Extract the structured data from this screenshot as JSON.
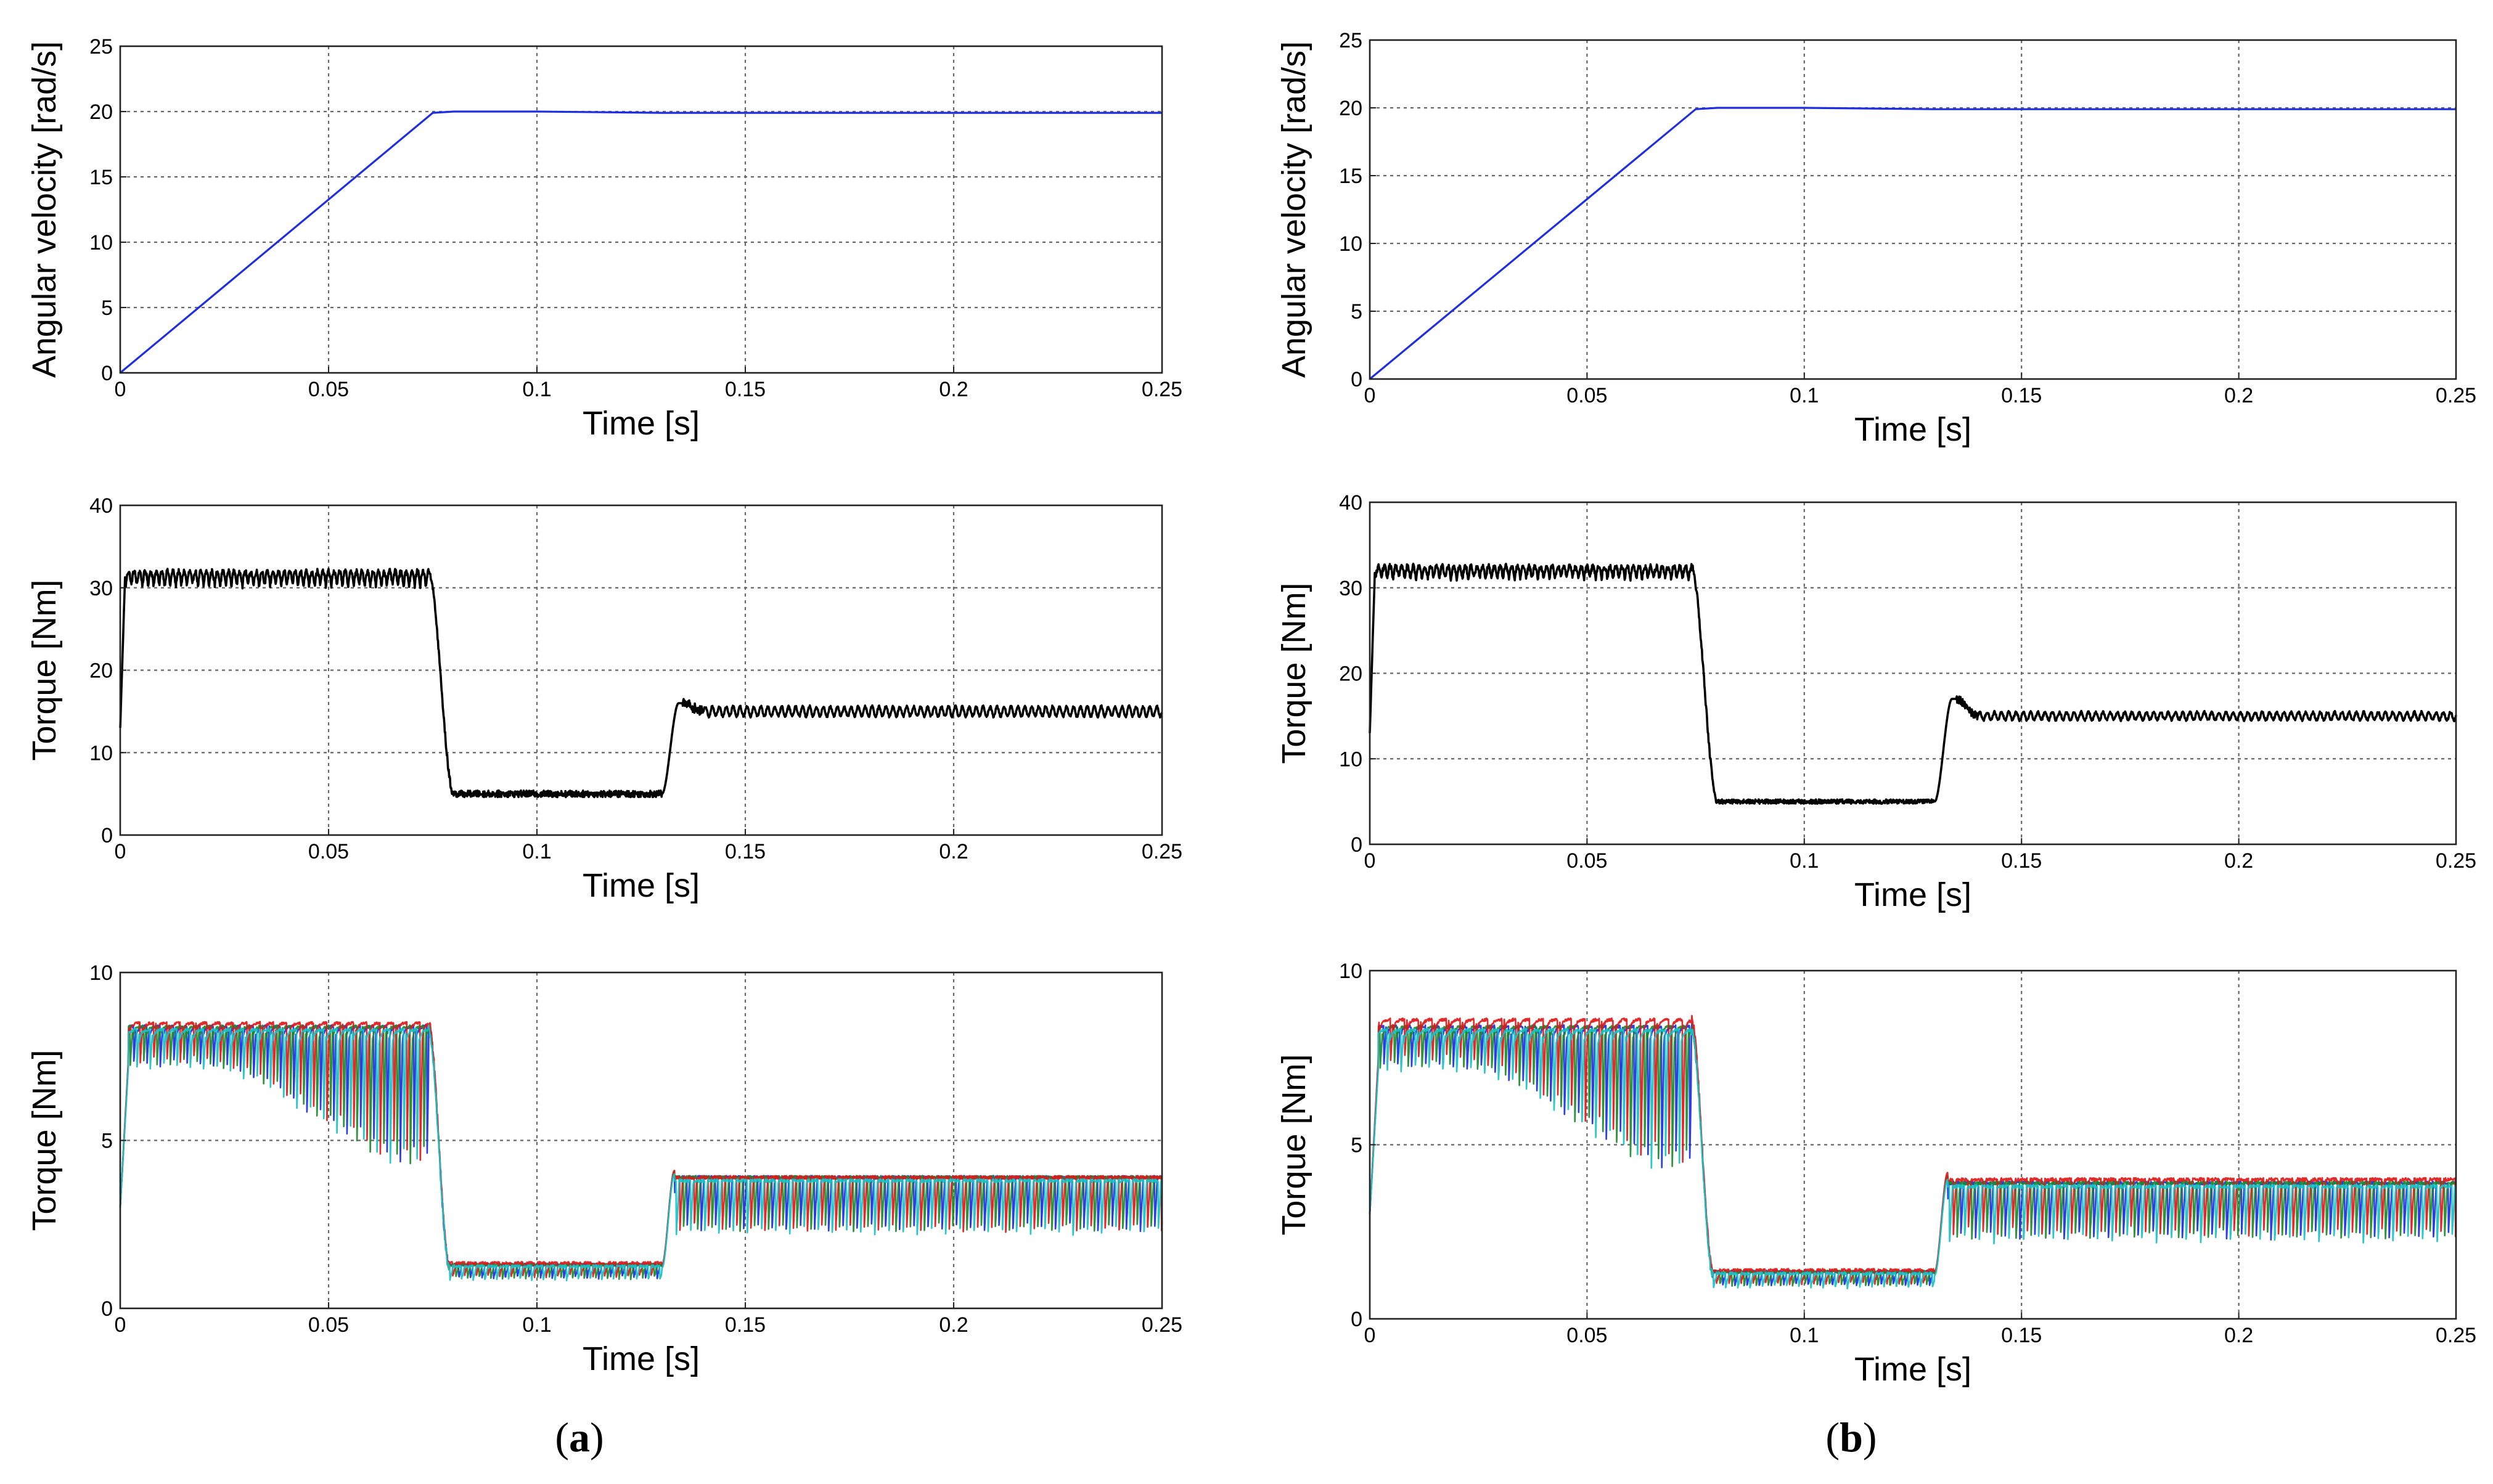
{
  "colors": {
    "velocity": "#1f2ee0",
    "torque_total": "#000000",
    "motor1": "#1a2fe0",
    "motor2": "#1c8a2c",
    "motor3": "#e01818",
    "motor4": "#19c1c6",
    "grid": "#666666"
  },
  "panels": [
    {
      "label_open": "(",
      "label_letter": "a",
      "label_close": ")",
      "charts": [
        {
          "type": "line",
          "xlabel": "Time [s]",
          "ylabel": "Angular velocity [rad/s]",
          "xlim": [
            0,
            0.25
          ],
          "ylim": [
            0,
            25
          ],
          "xticks": [
            "0",
            "0.05",
            "0.1",
            "0.15",
            "0.2",
            "0.25"
          ],
          "yticks": [
            "0",
            "5",
            "10",
            "15",
            "20",
            "25"
          ],
          "grid": true,
          "series": [
            {
              "kind": "velocity",
              "x": [
                0,
                0.075,
                0.08,
                0.1,
                0.13,
                0.25
              ],
              "y": [
                0,
                19.9,
                20.0,
                20.0,
                19.9,
                19.9
              ]
            }
          ]
        },
        {
          "type": "line",
          "xlabel": "Time [s]",
          "ylabel": "Torque [Nm]",
          "xlim": [
            0,
            0.25
          ],
          "ylim": [
            0,
            40
          ],
          "xticks": [
            "0",
            "0.05",
            "0.1",
            "0.15",
            "0.2",
            "0.25"
          ],
          "yticks": [
            "0",
            "10",
            "20",
            "30",
            "40"
          ],
          "grid": true,
          "series": [
            {
              "kind": "total",
              "levels": {
                "start": 13,
                "high": 32,
                "low": 5,
                "mid": 15,
                "overshoot": 16,
                "ripple_high": 2,
                "ripple_low": 0.8,
                "ripple_mid": 1.2
              }
            }
          ]
        },
        {
          "type": "line",
          "xlabel": "Time [s]",
          "ylabel": "Torque [Nm]",
          "xlim": [
            0,
            0.25
          ],
          "ylim": [
            0,
            10
          ],
          "xticks": [
            "0",
            "0.05",
            "0.1",
            "0.15",
            "0.2",
            "0.25"
          ],
          "yticks": [
            "0",
            "5",
            "10"
          ],
          "grid": true,
          "series": [
            {
              "kind": "motor1",
              "phase": 0.0,
              "levels": {
                "high": 8.4,
                "low": 1.25,
                "mid": 3.9
              }
            },
            {
              "kind": "motor2",
              "phase": 0.25,
              "levels": {
                "high": 8.4,
                "low": 1.25,
                "mid": 3.9
              }
            },
            {
              "kind": "motor3",
              "phase": 0.5,
              "levels": {
                "high": 8.5,
                "low": 1.3,
                "mid": 3.9
              }
            },
            {
              "kind": "motor4",
              "phase": 0.75,
              "levels": {
                "high": 8.3,
                "low": 1.2,
                "mid": 3.8
              }
            }
          ]
        }
      ]
    },
    {
      "label_open": "(",
      "label_letter": "b",
      "label_close": ")",
      "charts": [
        {
          "type": "line",
          "xlabel": "Time [s]",
          "ylabel": "Angular velocity [rad/s]",
          "xlim": [
            0,
            0.25
          ],
          "ylim": [
            0,
            25
          ],
          "xticks": [
            "0",
            "0.05",
            "0.1",
            "0.15",
            "0.2",
            "0.25"
          ],
          "yticks": [
            "0",
            "5",
            "10",
            "15",
            "20",
            "25"
          ],
          "grid": true,
          "series": [
            {
              "kind": "velocity",
              "x": [
                0,
                0.075,
                0.08,
                0.1,
                0.13,
                0.25
              ],
              "y": [
                0,
                19.9,
                20.0,
                20.0,
                19.9,
                19.9
              ]
            }
          ]
        },
        {
          "type": "line",
          "xlabel": "Time [s]",
          "ylabel": "Torque [Nm]",
          "xlim": [
            0,
            0.25
          ],
          "ylim": [
            0,
            40
          ],
          "xticks": [
            "0",
            "0.05",
            "0.1",
            "0.15",
            "0.2",
            "0.25"
          ],
          "yticks": [
            "0",
            "10",
            "20",
            "30",
            "40"
          ],
          "grid": true,
          "series": [
            {
              "kind": "total",
              "levels": {
                "start": 13,
                "high": 32.5,
                "low": 5,
                "mid": 15,
                "overshoot": 17,
                "ripple_high": 1.6,
                "ripple_low": 0.5,
                "ripple_mid": 0.9
              }
            }
          ]
        },
        {
          "type": "line",
          "xlabel": "Time [s]",
          "ylabel": "Torque [Nm]",
          "xlim": [
            0,
            0.25
          ],
          "ylim": [
            0,
            10
          ],
          "xticks": [
            "0",
            "0.05",
            "0.1",
            "0.15",
            "0.2",
            "0.25"
          ],
          "yticks": [
            "0",
            "5",
            "10"
          ],
          "grid": true,
          "series": [
            {
              "kind": "motor1",
              "phase": 0.0,
              "levels": {
                "high": 8.4,
                "low": 1.3,
                "mid": 3.9
              }
            },
            {
              "kind": "motor2",
              "phase": 0.25,
              "levels": {
                "high": 8.4,
                "low": 1.3,
                "mid": 3.9
              }
            },
            {
              "kind": "motor3",
              "phase": 0.5,
              "levels": {
                "high": 8.6,
                "low": 1.35,
                "mid": 4.0
              }
            },
            {
              "kind": "motor4",
              "phase": 0.75,
              "levels": {
                "high": 8.3,
                "low": 1.25,
                "mid": 3.8
              }
            }
          ]
        }
      ]
    }
  ]
}
